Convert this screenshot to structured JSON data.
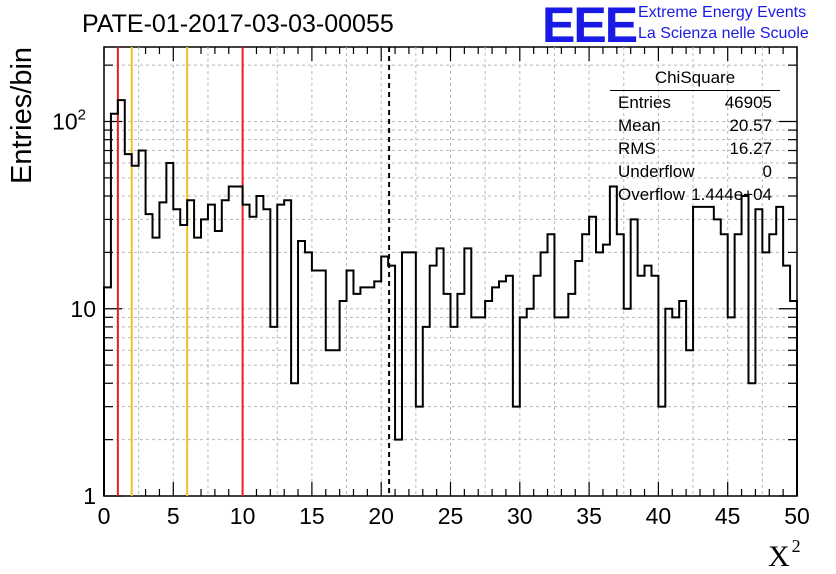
{
  "chart_data": {
    "type": "histogram",
    "title": "PATE-01-2017-03-03-00055",
    "xlabel": "X",
    "xlabel_superscript": "2",
    "ylabel": "Entries/bin",
    "y_log_scale": true,
    "xlim": [
      0,
      50
    ],
    "ylim": [
      1,
      250
    ],
    "x_ticks": [
      "0",
      "5",
      "10",
      "15",
      "20",
      "25",
      "30",
      "35",
      "40",
      "45",
      "50"
    ],
    "y_ticks": [
      "1",
      "10",
      "10^2"
    ],
    "grid": true,
    "bin_width": 0.5,
    "bin_start": 0,
    "counts": [
      13,
      110,
      130,
      67,
      58,
      70,
      32,
      24,
      37,
      60,
      34,
      28,
      38,
      24,
      30,
      36,
      26,
      38,
      45,
      45,
      36,
      31,
      40,
      34,
      8,
      36,
      38,
      4,
      23,
      20,
      16,
      16,
      6,
      6,
      11,
      16,
      12,
      13,
      13,
      14,
      19,
      17,
      2,
      20,
      20,
      3,
      8,
      17,
      21,
      12,
      8,
      12,
      21,
      9,
      9,
      11,
      13,
      14,
      15,
      3,
      9,
      10,
      15,
      20,
      25,
      9,
      9,
      12,
      18,
      25,
      31,
      20,
      22,
      45,
      25,
      10,
      30,
      15,
      17,
      15,
      3,
      10,
      9,
      11,
      6,
      35,
      35,
      35,
      30,
      25,
      9,
      25,
      40,
      4,
      34,
      20,
      25,
      35,
      17,
      11
    ],
    "vertical_lines": [
      {
        "x": 1.0,
        "color": "#e8201b",
        "style": "solid"
      },
      {
        "x": 2.0,
        "color": "#f5c11c",
        "style": "solid"
      },
      {
        "x": 6.0,
        "color": "#f5c11c",
        "style": "solid"
      },
      {
        "x": 10.0,
        "color": "#e8201b",
        "style": "solid"
      },
      {
        "x": 20.57,
        "color": "#000000",
        "style": "dashed"
      }
    ],
    "stats_box": {
      "name": "ChiSquare",
      "rows": [
        {
          "key": "Entries",
          "value": "46905"
        },
        {
          "key": "Mean",
          "value": "20.57"
        },
        {
          "key": "RMS",
          "value": "16.27"
        },
        {
          "key": "Underflow",
          "value": "0"
        },
        {
          "key": "Overflow",
          "value": "1.444e+04"
        }
      ]
    }
  },
  "logo": {
    "mark": "EEE",
    "line1": "Extreme Energy Events",
    "line2": "La Scienza nelle Scuole",
    "color": "#1a1ae6"
  }
}
